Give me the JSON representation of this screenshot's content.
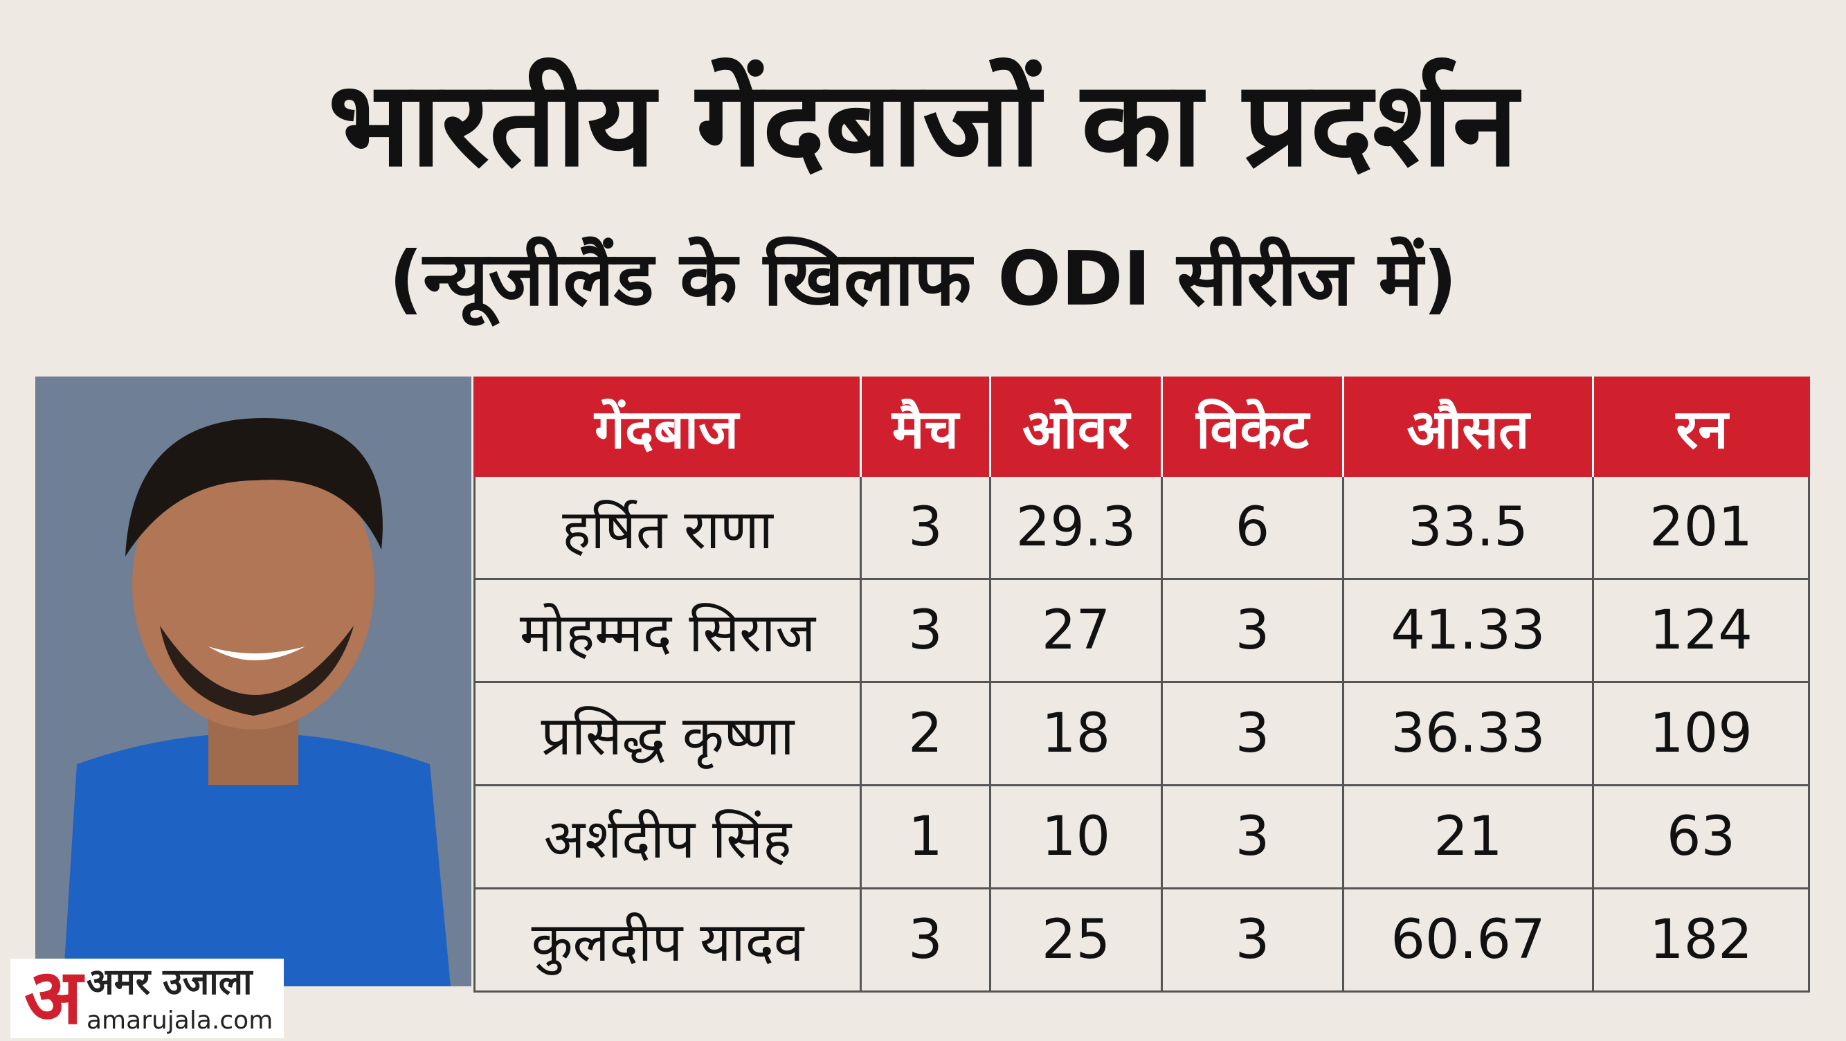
{
  "header": {
    "title": "भारतीय गेंदबाजों का प्रदर्शन",
    "subtitle": "(न्यूजीलैंड के खिलाफ ODI सीरीज में)"
  },
  "table": {
    "columns": [
      "गेंदबाज",
      "मैच",
      "ओवर",
      "विकेट",
      "औसत",
      "रन"
    ],
    "rows": [
      [
        "हर्षित राणा",
        3,
        29.3,
        6,
        33.5,
        201
      ],
      [
        "मोहम्मद सिराज",
        3,
        27,
        3,
        41.33,
        124
      ],
      [
        "प्रसिद्ध कृष्णा",
        2,
        18,
        3,
        36.33,
        109
      ],
      [
        "अर्शदीप सिंह",
        1,
        10,
        3,
        21,
        63
      ],
      [
        "कुलदीप यादव",
        3,
        25,
        3,
        60.67,
        182
      ]
    ]
  },
  "logo": {
    "mark": "अ",
    "name": "अमर उजाला",
    "site": "amarujala.com"
  }
}
